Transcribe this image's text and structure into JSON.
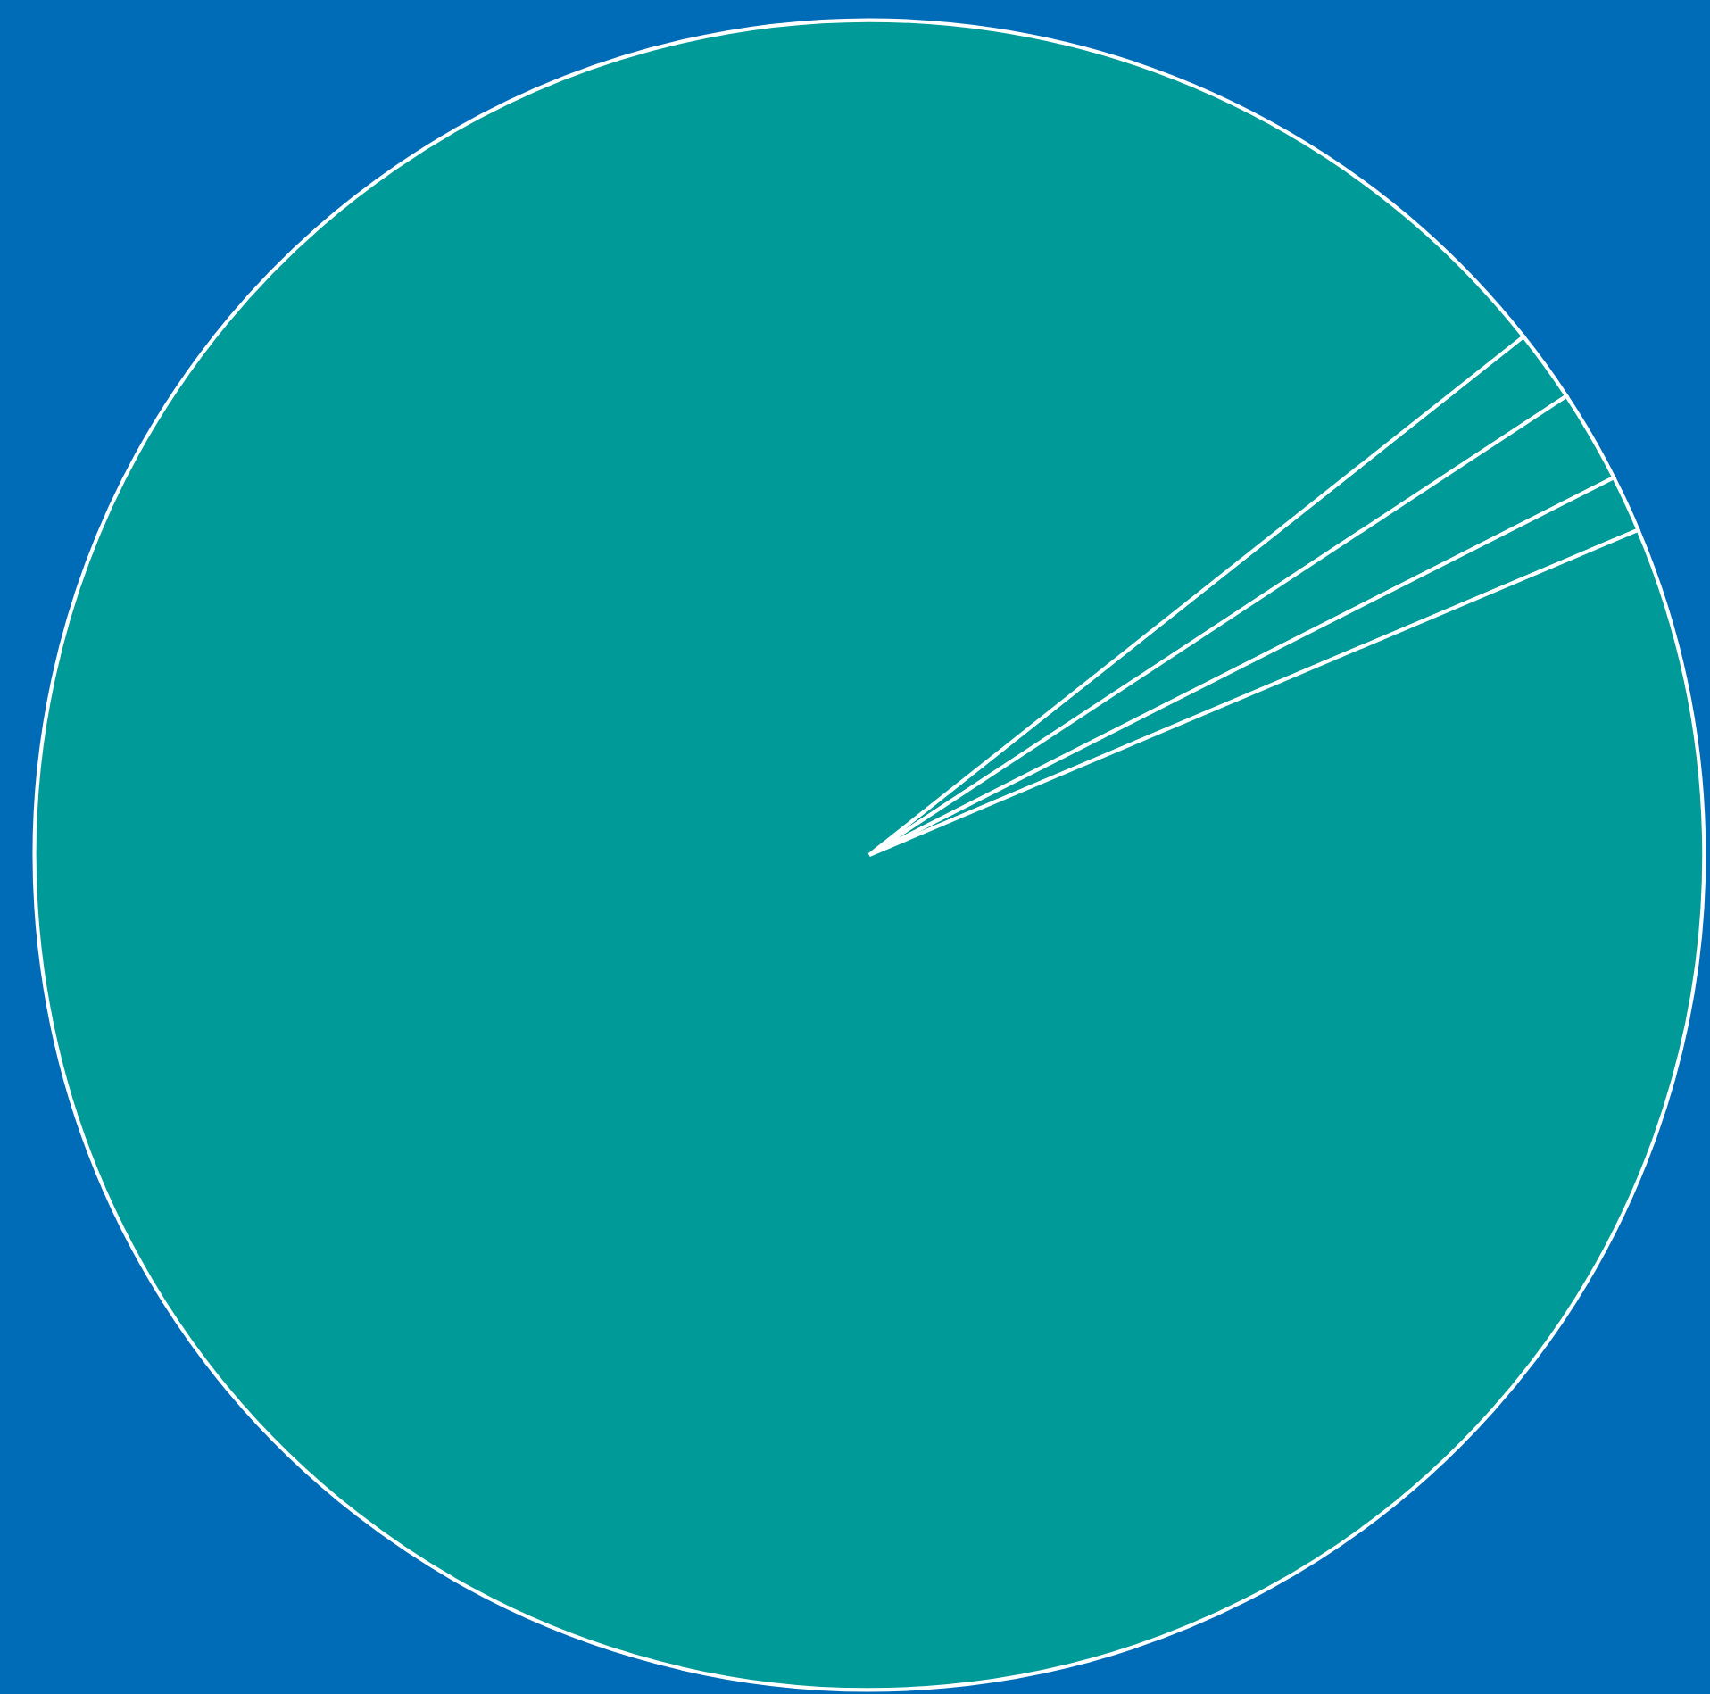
{
  "chart_data": {
    "type": "pie",
    "categories": [
      null,
      null,
      null,
      null
    ],
    "values": [
      1.4,
      1.8,
      1.1,
      95.7
    ],
    "colors": [
      "#009a98",
      "#009a98",
      "#009a98",
      "#009a98"
    ]
  }
}
